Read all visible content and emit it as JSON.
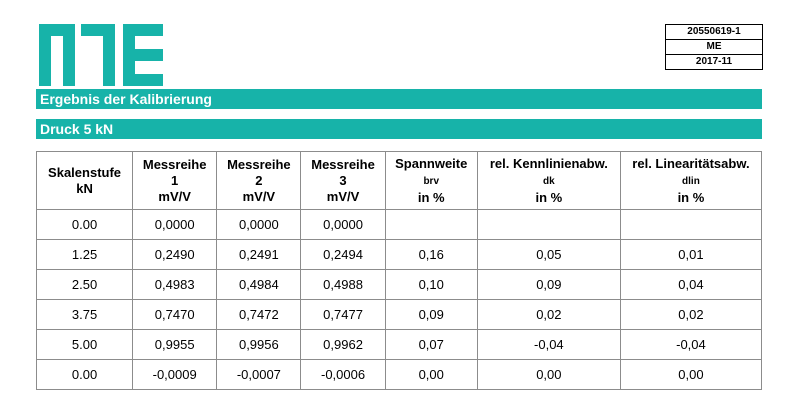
{
  "header": {
    "logo_name": "ME logo",
    "doc_number": "20550619-1",
    "company": "ME",
    "date": "2017-11",
    "brand_color": "#17b3a9"
  },
  "sections": {
    "title": "Ergebnis der Kalibrierung",
    "subtitle": "Druck 5 kN"
  },
  "table": {
    "headers": [
      {
        "l1": "Skalenstufe",
        "l2": "kN",
        "sym": "",
        "l3": ""
      },
      {
        "l1": "Messreihe",
        "l2": "1",
        "sym": "",
        "l3": "mV/V"
      },
      {
        "l1": "Messreihe",
        "l2": "2",
        "sym": "",
        "l3": "mV/V"
      },
      {
        "l1": "Messreihe",
        "l2": "3",
        "sym": "",
        "l3": "mV/V"
      },
      {
        "l1": "Spannweite",
        "l2": "",
        "sym": "brv",
        "l3": "in %"
      },
      {
        "l1": "rel. Kennlinienabw.",
        "l2": "",
        "sym": "dk",
        "l3": "in %"
      },
      {
        "l1": "rel. Linearitätsabw.",
        "l2": "",
        "sym": "dlin",
        "l3": "in %"
      }
    ],
    "rows": [
      [
        "0.00",
        "0,0000",
        "0,0000",
        "0,0000",
        "",
        "",
        ""
      ],
      [
        "1.25",
        "0,2490",
        "0,2491",
        "0,2494",
        "0,16",
        "0,05",
        "0,01"
      ],
      [
        "2.50",
        "0,4983",
        "0,4984",
        "0,4988",
        "0,10",
        "0,09",
        "0,04"
      ],
      [
        "3.75",
        "0,7470",
        "0,7472",
        "0,7477",
        "0,09",
        "0,02",
        "0,02"
      ],
      [
        "5.00",
        "0,9955",
        "0,9956",
        "0,9962",
        "0,07",
        "-0,04",
        "-0,04"
      ],
      [
        "0.00",
        "-0,0009",
        "-0,0007",
        "-0,0006",
        "0,00",
        "0,00",
        "0,00"
      ]
    ]
  }
}
